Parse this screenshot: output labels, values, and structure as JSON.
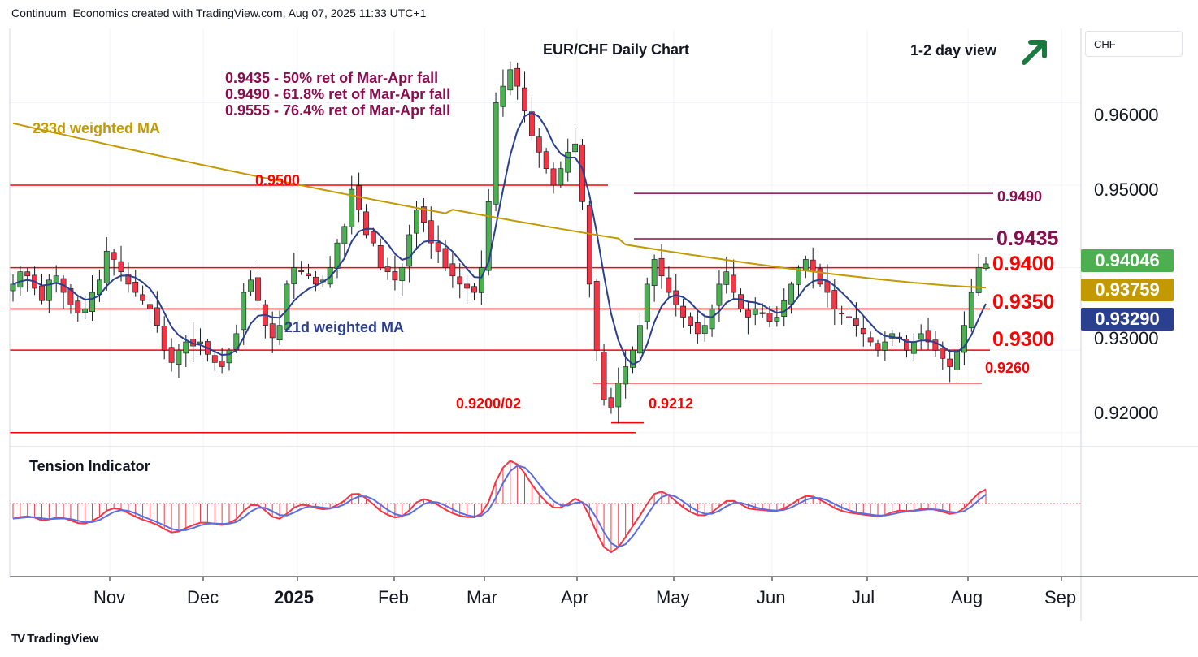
{
  "header": {
    "text": "Continuum_Economics created with TradingView.com, Aug 07, 2025 11:33 UTC+1"
  },
  "brand": {
    "name": "TradingView",
    "logo": "TV"
  },
  "currency_selector": {
    "label": "CHF"
  },
  "view": {
    "label": "1-2 day view",
    "arrow_icon": "arrow-up-right-icon",
    "arrow_color": "#1b7a3e"
  },
  "notes": [
    "0.9435 - 50% ret of Mar-Apr fall",
    "0.9490 - 61.8% ret of Mar-Apr fall",
    "0.9555 - 76.4% ret of Mar-Apr fall"
  ],
  "ma_labels": {
    "slow": "233d weighted MA",
    "fast": "21d weighted MA"
  },
  "indicator": {
    "title": "Tension Indicator"
  },
  "levels": {
    "l9500": "0.9500",
    "l9490": "0.9490",
    "l9435": "0.9435",
    "l9400": "0.9400",
    "l9350": "0.9350",
    "l9300": "0.9300",
    "l9260": "0.9260",
    "l9212": "0.9212",
    "l9200": "0.9200/02"
  },
  "price_badges": {
    "last": "0.94046",
    "ma233": "0.93759",
    "ma21": "0.93290"
  },
  "colors": {
    "up": "#4caf50",
    "down": "#f23645",
    "support_resistance": "#ff0000",
    "fibonacci": "#880e4f",
    "ma_slow": "#c29a00",
    "ma_fast": "#2a3f8f",
    "badge_last": "#4caf50",
    "badge_ma233": "#c29a00",
    "badge_ma21": "#2a3f8f",
    "tension_red": "#f23645",
    "tension_blue": "#5b6ee1"
  },
  "chart_data": {
    "type": "candlestick",
    "title": "EUR/CHF Daily Chart",
    "y_ticks": [
      "0.96000",
      "0.95000",
      "0.93000",
      "0.92000"
    ],
    "ylim": [
      0.9185,
      0.969
    ],
    "x_ticks": [
      "Nov",
      "Dec",
      "2025",
      "Feb",
      "Mar",
      "Apr",
      "May",
      "Jun",
      "Jul",
      "Aug",
      "Sep"
    ],
    "horizontal_levels": [
      0.95,
      0.949,
      0.9435,
      0.94,
      0.935,
      0.93,
      0.926,
      0.9212,
      0.92
    ],
    "last_close": 0.94046,
    "ma233_last": 0.93759,
    "ma21_last": 0.9329,
    "close_path_approx": [
      0.938,
      0.9395,
      0.939,
      0.9375,
      0.936,
      0.9385,
      0.939,
      0.937,
      0.9355,
      0.9345,
      0.935,
      0.937,
      0.9385,
      0.942,
      0.941,
      0.9395,
      0.938,
      0.937,
      0.936,
      0.935,
      0.933,
      0.93,
      0.9285,
      0.93,
      0.931,
      0.9305,
      0.931,
      0.9295,
      0.9285,
      0.928,
      0.93,
      0.932,
      0.937,
      0.9385,
      0.936,
      0.933,
      0.9315,
      0.933,
      0.938,
      0.94,
      0.9395,
      0.939,
      0.938,
      0.9385,
      0.94,
      0.943,
      0.945,
      0.9495,
      0.947,
      0.944,
      0.943,
      0.94,
      0.9395,
      0.9385,
      0.94,
      0.944,
      0.947,
      0.9455,
      0.943,
      0.942,
      0.94,
      0.939,
      0.938,
      0.9375,
      0.937,
      0.94,
      0.948,
      0.96,
      0.962,
      0.964,
      0.962,
      0.959,
      0.956,
      0.954,
      0.952,
      0.95,
      0.952,
      0.954,
      0.955,
      0.948,
      0.938,
      0.93,
      0.924,
      0.923,
      0.926,
      0.928,
      0.93,
      0.933,
      0.938,
      0.941,
      0.939,
      0.937,
      0.9355,
      0.934,
      0.933,
      0.932,
      0.933,
      0.935,
      0.938,
      0.9395,
      0.937,
      0.935,
      0.934,
      0.935,
      0.9345,
      0.9335,
      0.934,
      0.936,
      0.938,
      0.94,
      0.941,
      0.9395,
      0.938,
      0.937,
      0.935,
      0.9345,
      0.934,
      0.933,
      0.932,
      0.931,
      0.93,
      0.931,
      0.932,
      0.9315,
      0.93,
      0.931,
      0.932,
      0.931,
      0.93,
      0.929,
      0.928,
      0.93,
      0.933,
      0.937,
      0.94,
      0.94046
    ]
  }
}
